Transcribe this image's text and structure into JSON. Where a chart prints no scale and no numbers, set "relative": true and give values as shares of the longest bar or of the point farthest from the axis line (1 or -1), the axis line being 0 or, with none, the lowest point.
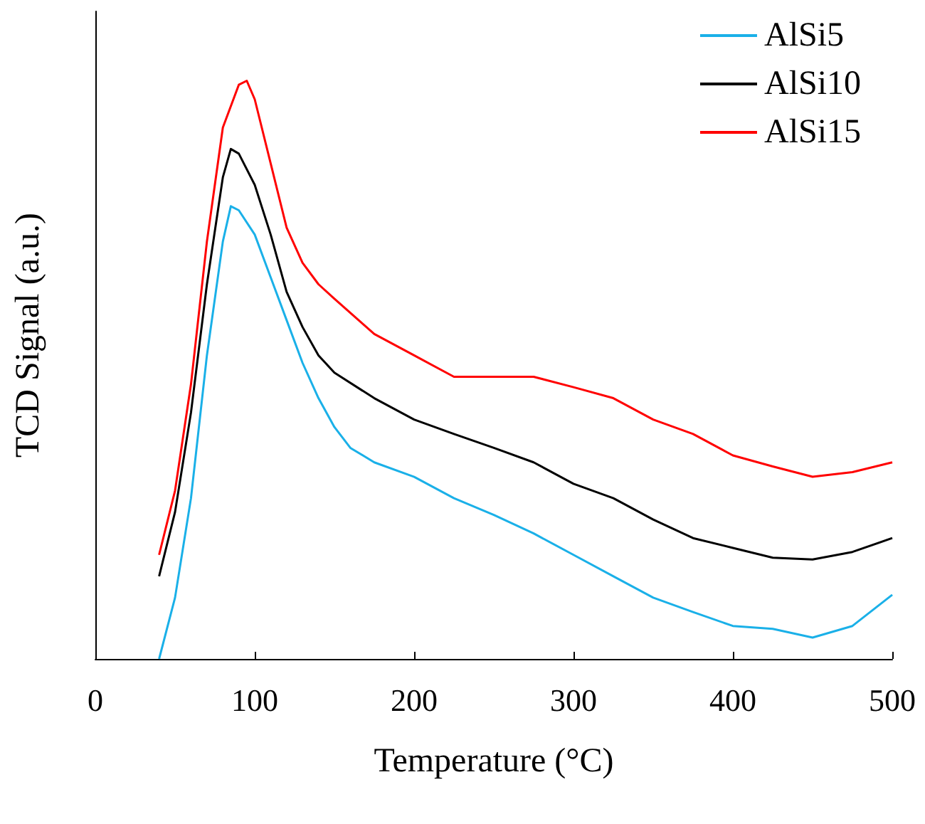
{
  "chart_data": {
    "type": "line",
    "xlabel": "Temperature (°C)",
    "ylabel": "TCD Signal (a.u.)",
    "relative": true,
    "xlim": [
      0,
      500
    ],
    "xticks": [
      0,
      100,
      200,
      300,
      400,
      500
    ],
    "tick_labels": "x",
    "grid": false,
    "legend": "top right",
    "marker": "none",
    "line_style": "solid",
    "series": [
      {
        "name": "AlSi5",
        "color": "#1ab0e8",
        "x": [
          40,
          50,
          60,
          70,
          80,
          85,
          90,
          100,
          110,
          120,
          130,
          140,
          150,
          160,
          175,
          200,
          225,
          250,
          275,
          300,
          325,
          350,
          375,
          400,
          425,
          450,
          475,
          500
        ],
        "values": [
          0,
          0.106,
          0.278,
          0.525,
          0.722,
          0.783,
          0.776,
          0.734,
          0.66,
          0.586,
          0.512,
          0.451,
          0.401,
          0.365,
          0.34,
          0.315,
          0.278,
          0.249,
          0.217,
          0.18,
          0.143,
          0.106,
          0.081,
          0.057,
          0.052,
          0.037,
          0.057,
          0.111
        ]
      },
      {
        "name": "AlSi10",
        "color": "#000000",
        "x": [
          40,
          50,
          60,
          70,
          80,
          85,
          90,
          100,
          110,
          120,
          130,
          140,
          150,
          175,
          200,
          225,
          250,
          275,
          300,
          325,
          350,
          375,
          400,
          425,
          450,
          475,
          500
        ],
        "values": [
          0.143,
          0.254,
          0.426,
          0.648,
          0.833,
          0.882,
          0.874,
          0.82,
          0.734,
          0.635,
          0.574,
          0.525,
          0.495,
          0.451,
          0.414,
          0.389,
          0.365,
          0.34,
          0.303,
          0.278,
          0.241,
          0.209,
          0.192,
          0.175,
          0.172,
          0.185,
          0.209
        ]
      },
      {
        "name": "AlSi15",
        "color": "#ff0000",
        "x": [
          40,
          50,
          60,
          70,
          80,
          90,
          95,
          100,
          110,
          120,
          130,
          140,
          150,
          175,
          200,
          225,
          250,
          275,
          300,
          325,
          350,
          375,
          400,
          425,
          450,
          475,
          500
        ],
        "values": [
          0.18,
          0.291,
          0.475,
          0.722,
          0.919,
          0.993,
          1,
          0.968,
          0.857,
          0.746,
          0.685,
          0.648,
          0.623,
          0.562,
          0.525,
          0.488,
          0.488,
          0.488,
          0.47,
          0.451,
          0.414,
          0.389,
          0.352,
          0.333,
          0.315,
          0.323,
          0.34
        ]
      }
    ]
  }
}
